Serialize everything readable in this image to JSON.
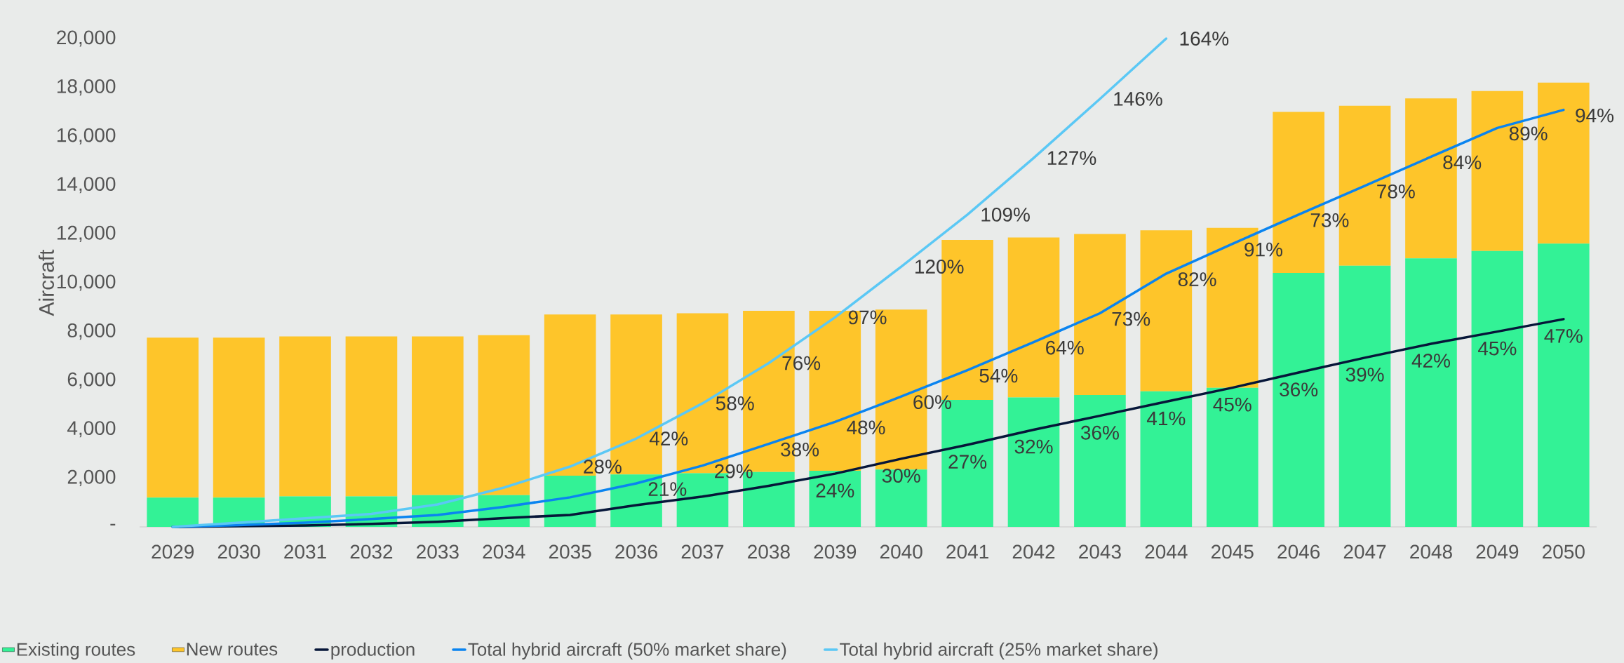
{
  "chart_data": {
    "type": "bar",
    "stacked": true,
    "ylabel": "Aircraft",
    "legend": "bottom",
    "categories": [
      "2029",
      "2030",
      "2031",
      "2032",
      "2033",
      "2034",
      "2035",
      "2036",
      "2037",
      "2038",
      "2039",
      "2040",
      "2041",
      "2042",
      "2043",
      "2044",
      "2045",
      "2046",
      "2047",
      "2048",
      "2049",
      "2050"
    ],
    "ylim": [
      0,
      20000
    ],
    "yticks": [
      {
        "value": 0,
        "label": "-"
      },
      {
        "value": 2000,
        "label": "2,000"
      },
      {
        "value": 4000,
        "label": "4,000"
      },
      {
        "value": 6000,
        "label": "6,000"
      },
      {
        "value": 8000,
        "label": "8,000"
      },
      {
        "value": 10000,
        "label": "10,000"
      },
      {
        "value": 12000,
        "label": "12,000"
      },
      {
        "value": 14000,
        "label": "14,000"
      },
      {
        "value": 16000,
        "label": "16,000"
      },
      {
        "value": 18000,
        "label": "18,000"
      },
      {
        "value": 20000,
        "label": "20,000"
      }
    ],
    "series": [
      {
        "name": "Existing routes",
        "color": "#33f296",
        "values": [
          1200,
          1200,
          1250,
          1250,
          1300,
          1300,
          2100,
          2150,
          2200,
          2250,
          2300,
          2350,
          5200,
          5300,
          5400,
          5550,
          5700,
          10400,
          10700,
          11000,
          11300,
          11600
        ]
      },
      {
        "name": "New routes",
        "color": "#fec52a",
        "values": [
          6550,
          6550,
          6550,
          6550,
          6500,
          6550,
          6600,
          6550,
          6550,
          6600,
          6550,
          6550,
          6550,
          6550,
          6600,
          6600,
          6550,
          6600,
          6550,
          6550,
          6550,
          6600
        ]
      },
      {
        "name": "production",
        "type": "line",
        "color": "#061639",
        "values": [
          0,
          30,
          60,
          120,
          210,
          360,
          490,
          890,
          1240,
          1680,
          2180,
          2790,
          3360,
          3980,
          4550,
          5130,
          5700,
          6320,
          6930,
          7500,
          8000,
          8510
        ]
      },
      {
        "name": "Total hybrid aircraft (50% market share)",
        "type": "line",
        "color": "#0a84f0",
        "values": [
          0,
          70,
          170,
          320,
          490,
          820,
          1210,
          1780,
          2510,
          3400,
          4300,
          5340,
          6420,
          7570,
          8750,
          10370,
          11590,
          12790,
          13970,
          15160,
          16340,
          17080
        ]
      },
      {
        "name": "Total hybrid aircraft (25% market share)",
        "type": "line",
        "color": "#5bc8f5",
        "values": [
          0,
          170,
          350,
          530,
          920,
          1610,
          2470,
          3620,
          5060,
          6710,
          8580,
          10660,
          12790,
          15110,
          17530,
          20000,
          null,
          null,
          null,
          null,
          null,
          null
        ]
      }
    ],
    "annotations": [
      {
        "text": "28%",
        "x": "2035",
        "y": 2470
      },
      {
        "text": "42%",
        "x": "2036",
        "y": 3620
      },
      {
        "text": "58%",
        "x": "2037",
        "y": 5060
      },
      {
        "text": "76%",
        "x": "2038",
        "y": 6710
      },
      {
        "text": "97%",
        "x": "2039",
        "y": 8580
      },
      {
        "text": "120%",
        "x": "2040",
        "y": 10660
      },
      {
        "text": "109%",
        "x": "2041",
        "y": 12790
      },
      {
        "text": "127%",
        "x": "2042",
        "y": 15110
      },
      {
        "text": "146%",
        "x": "2043",
        "y": 17530
      },
      {
        "text": "164%",
        "x": "2044",
        "y": 20000
      },
      {
        "text": "21%",
        "x": "2036",
        "y": 1780
      },
      {
        "text": "29%",
        "x": "2037",
        "y": 2510
      },
      {
        "text": "38%",
        "x": "2038",
        "y": 3400
      },
      {
        "text": "48%",
        "x": "2039",
        "y": 4300
      },
      {
        "text": "60%",
        "x": "2040",
        "y": 5340
      },
      {
        "text": "54%",
        "x": "2041",
        "y": 6420
      },
      {
        "text": "64%",
        "x": "2042",
        "y": 7570
      },
      {
        "text": "73%",
        "x": "2043",
        "y": 8750
      },
      {
        "text": "82%",
        "x": "2044",
        "y": 10370
      },
      {
        "text": "91%",
        "x": "2045",
        "y": 11590
      },
      {
        "text": "73%",
        "x": "2046",
        "y": 12790
      },
      {
        "text": "78%",
        "x": "2047",
        "y": 13970
      },
      {
        "text": "84%",
        "x": "2048",
        "y": 15160
      },
      {
        "text": "89%",
        "x": "2049",
        "y": 16340
      },
      {
        "text": "94%",
        "x": "2050",
        "y": 17080
      },
      {
        "text": "24%",
        "x": "2039",
        "y": 2180
      },
      {
        "text": "30%",
        "x": "2040",
        "y": 2790
      },
      {
        "text": "27%",
        "x": "2041",
        "y": 3360
      },
      {
        "text": "32%",
        "x": "2042",
        "y": 3980
      },
      {
        "text": "36%",
        "x": "2043",
        "y": 4550
      },
      {
        "text": "41%",
        "x": "2044",
        "y": 5130
      },
      {
        "text": "45%",
        "x": "2045",
        "y": 5700
      },
      {
        "text": "36%",
        "x": "2046",
        "y": 6320
      },
      {
        "text": "39%",
        "x": "2047",
        "y": 6930
      },
      {
        "text": "42%",
        "x": "2048",
        "y": 7500
      },
      {
        "text": "45%",
        "x": "2049",
        "y": 8000
      },
      {
        "text": "47%",
        "x": "2050",
        "y": 8510
      }
    ]
  }
}
